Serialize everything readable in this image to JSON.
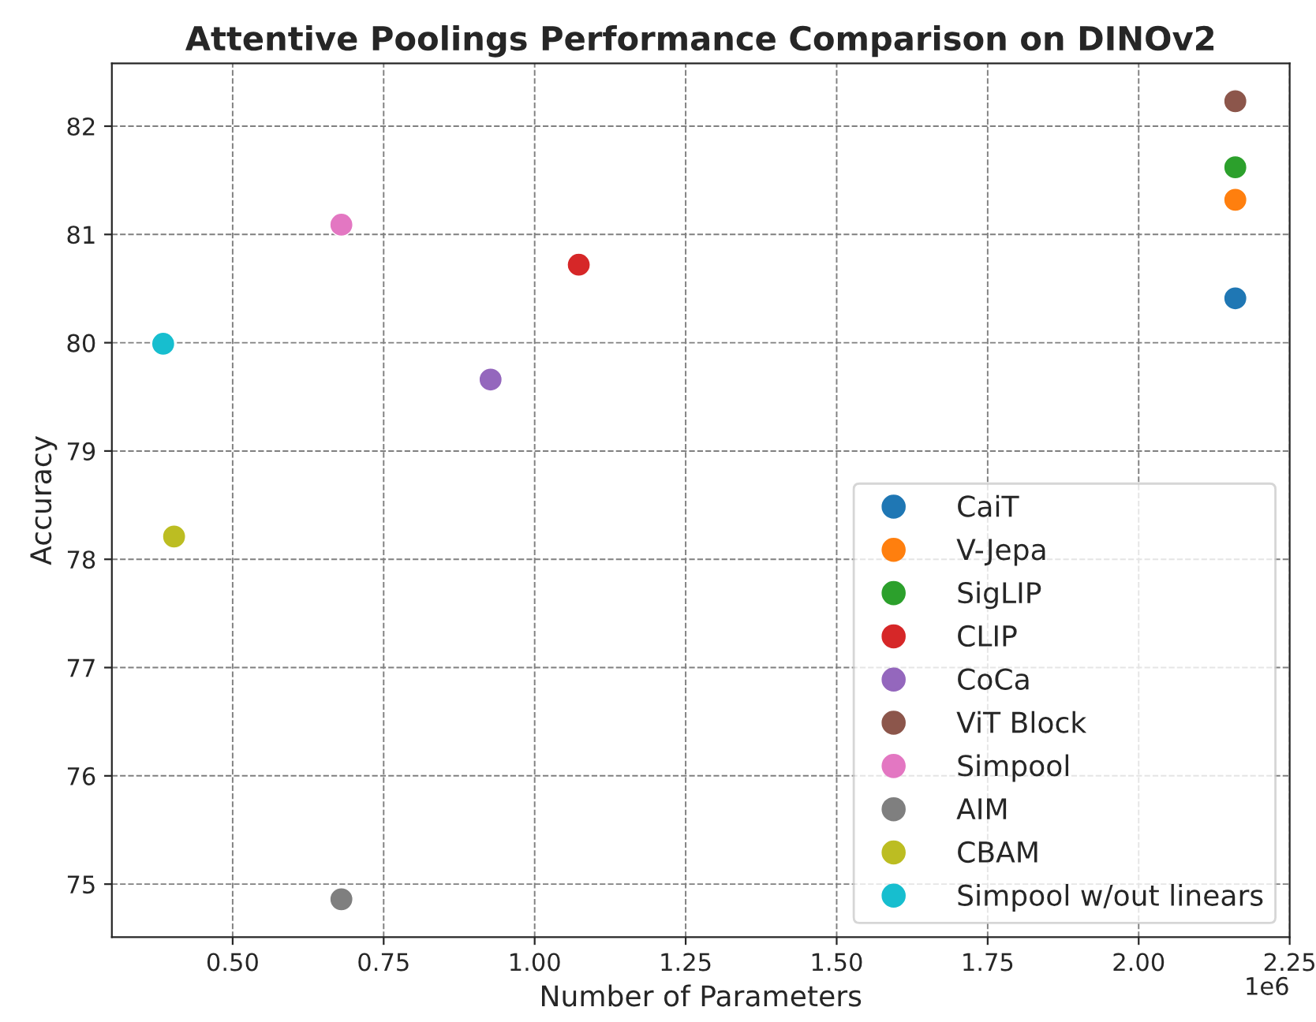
{
  "chart_data": {
    "type": "scatter",
    "title": "Attentive Poolings Performance Comparison on DINOv2",
    "xlabel": "Number of Parameters",
    "ylabel": "Accuracy",
    "series": [
      {
        "name": "CaiT",
        "color": "#1f77b4",
        "x": [
          2.16
        ],
        "values": [
          80.41
        ]
      },
      {
        "name": "V-Jepa",
        "color": "#ff7f0e",
        "x": [
          2.16
        ],
        "values": [
          81.32
        ]
      },
      {
        "name": "SigLIP",
        "color": "#2ca02c",
        "x": [
          2.16
        ],
        "values": [
          81.62
        ]
      },
      {
        "name": "CLIP",
        "color": "#d62728",
        "x": [
          1.073
        ],
        "values": [
          80.72
        ]
      },
      {
        "name": "CoCa",
        "color": "#9467bd",
        "x": [
          0.927
        ],
        "values": [
          79.66
        ]
      },
      {
        "name": "ViT Block",
        "color": "#8c564b",
        "x": [
          2.16
        ],
        "values": [
          82.23
        ]
      },
      {
        "name": "Simpool",
        "color": "#e377c2",
        "x": [
          0.68
        ],
        "values": [
          81.09
        ]
      },
      {
        "name": "AIM",
        "color": "#7f7f7f",
        "x": [
          0.68
        ],
        "values": [
          74.86
        ]
      },
      {
        "name": "CBAM",
        "color": "#bcbd22",
        "x": [
          0.403
        ],
        "values": [
          78.21
        ]
      },
      {
        "name": "Simpool w/out linears",
        "color": "#17becf",
        "x": [
          0.385
        ],
        "values": [
          79.99
        ]
      }
    ],
    "xlim": [
      0.3,
      2.25
    ],
    "ylim": [
      74.51,
      82.58
    ],
    "xticks": [
      {
        "value": 0.5,
        "label": "0.50"
      },
      {
        "value": 0.75,
        "label": "0.75"
      },
      {
        "value": 1.0,
        "label": "1.00"
      },
      {
        "value": 1.25,
        "label": "1.25"
      },
      {
        "value": 1.5,
        "label": "1.50"
      },
      {
        "value": 1.75,
        "label": "1.75"
      },
      {
        "value": 2.0,
        "label": "2.00"
      },
      {
        "value": 2.25,
        "label": "2.25"
      }
    ],
    "yticks": [
      75,
      76,
      77,
      78,
      79,
      80,
      81,
      82
    ],
    "annotations": [
      "1e6"
    ],
    "grid": true,
    "legend": "bottom right",
    "marker": "circle"
  }
}
